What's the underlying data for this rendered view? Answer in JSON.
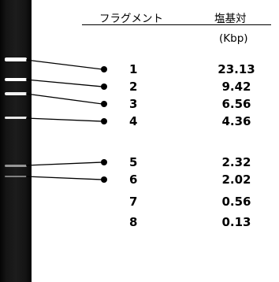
{
  "table": {
    "headers": {
      "fragment": "フラグメント",
      "base_pair": "塩基対",
      "unit": "(Kbp)"
    },
    "rows": [
      {
        "fragment": "1",
        "size": "23.13"
      },
      {
        "fragment": "2",
        "size": "9.42"
      },
      {
        "fragment": "3",
        "size": "6.56"
      },
      {
        "fragment": "4",
        "size": "4.36"
      },
      {
        "fragment": "5",
        "size": "2.32"
      },
      {
        "fragment": "6",
        "size": "2.02"
      },
      {
        "fragment": "7",
        "size": "0.56"
      },
      {
        "fragment": "8",
        "size": "0.13"
      }
    ]
  },
  "colors": {
    "gel_background": "#111111",
    "band": "#ffffff",
    "line": "#000000"
  }
}
